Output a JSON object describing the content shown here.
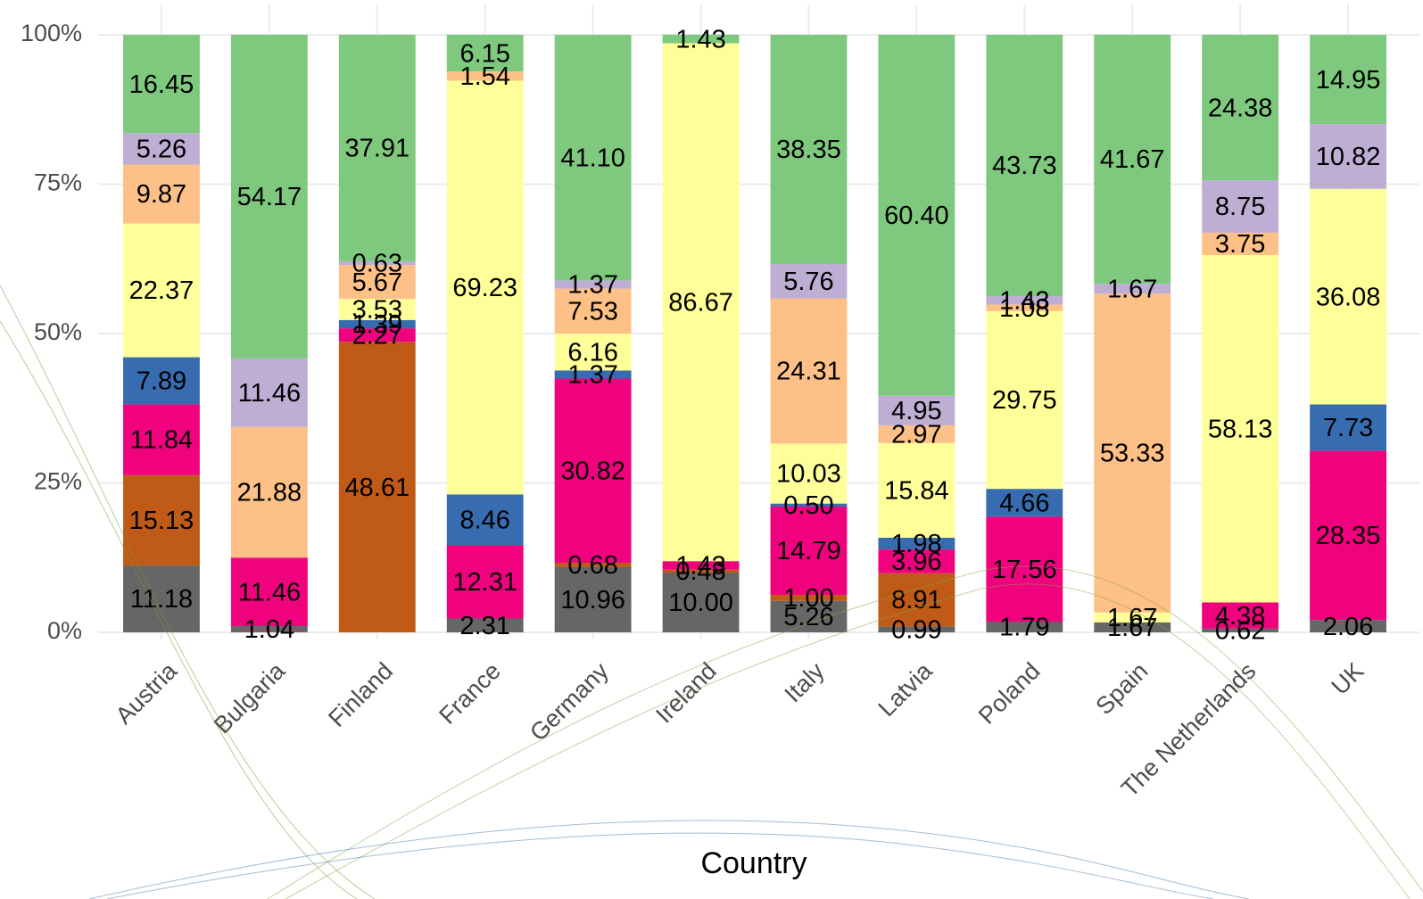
{
  "chart_data": {
    "type": "stacked_bar",
    "x_label": "Country",
    "categories": [
      "Austria",
      "Bulgaria",
      "Finland",
      "France",
      "Germany",
      "Ireland",
      "Italy",
      "Latvia",
      "Poland",
      "Spain",
      "The Netherlands",
      "UK"
    ],
    "ylim": [
      0,
      100
    ],
    "yticks": [
      {
        "value": 0,
        "label": "0%"
      },
      {
        "value": 25,
        "label": "25%"
      },
      {
        "value": 50,
        "label": "50%"
      },
      {
        "value": 75,
        "label": "75%"
      },
      {
        "value": 100,
        "label": "100%"
      }
    ],
    "grid": true,
    "series": [
      {
        "color": "#666666",
        "values": [
          11.18,
          1.04,
          null,
          2.31,
          10.96,
          10.0,
          5.26,
          0.99,
          1.79,
          1.67,
          0.62,
          2.06
        ],
        "value_labels": [
          "11.18",
          "1.04",
          null,
          "2.31",
          "10.96",
          "10.00",
          "5.26",
          "0.99",
          "1.79",
          "1.67",
          "0.62",
          "2.06"
        ]
      },
      {
        "color": "#bf5b17",
        "values": [
          15.13,
          null,
          48.61,
          null,
          0.68,
          0.48,
          1.0,
          8.91,
          null,
          null,
          null,
          null
        ],
        "value_labels": [
          "15.13",
          null,
          "48.61",
          null,
          "0.68",
          "0.48",
          "1.00",
          "8.91",
          null,
          null,
          null,
          null
        ]
      },
      {
        "color": "#f0027f",
        "values": [
          11.84,
          11.46,
          2.27,
          12.31,
          30.82,
          1.43,
          14.79,
          3.96,
          17.56,
          null,
          4.38,
          28.35
        ],
        "value_labels": [
          "11.84",
          "11.46",
          "2.27",
          "12.31",
          "30.82",
          "1.43",
          "14.79",
          "3.96",
          "17.56",
          null,
          "4.38",
          "28.35"
        ]
      },
      {
        "color": "#386cb0",
        "values": [
          7.89,
          null,
          1.39,
          8.46,
          1.37,
          null,
          0.5,
          1.98,
          4.66,
          null,
          null,
          7.73
        ],
        "value_labels": [
          "7.89",
          null,
          "1.39",
          "8.46",
          "1.37",
          null,
          "0.50",
          "1.98",
          "4.66",
          null,
          null,
          "7.73"
        ]
      },
      {
        "color": "#ffff99",
        "values": [
          22.37,
          null,
          3.53,
          69.23,
          6.16,
          86.67,
          10.03,
          15.84,
          29.75,
          1.67,
          58.13,
          36.08
        ],
        "value_labels": [
          "22.37",
          null,
          "3.53",
          "69.23",
          "6.16",
          "86.67",
          "10.03",
          "15.84",
          "29.75",
          "1.67",
          "58.13",
          "36.08"
        ]
      },
      {
        "color": "#fdc086",
        "values": [
          9.87,
          21.88,
          5.67,
          1.54,
          7.53,
          null,
          24.31,
          2.97,
          1.08,
          53.33,
          3.75,
          null
        ],
        "value_labels": [
          "9.87",
          "21.88",
          "5.67",
          "1.54",
          "7.53",
          null,
          "24.31",
          "2.97",
          "1.08",
          "53.33",
          "3.75",
          null
        ]
      },
      {
        "color": "#beaed4",
        "values": [
          5.26,
          11.46,
          0.63,
          null,
          1.37,
          null,
          5.76,
          4.95,
          1.43,
          1.67,
          8.75,
          10.82
        ],
        "value_labels": [
          "5.26",
          "11.46",
          "0.63",
          null,
          "1.37",
          null,
          "5.76",
          "4.95",
          "1.43",
          "1.67",
          "8.75",
          "10.82"
        ]
      },
      {
        "color": "#7fc97f",
        "values": [
          16.45,
          54.17,
          37.91,
          6.15,
          41.1,
          1.43,
          38.35,
          60.4,
          43.73,
          41.67,
          24.38,
          14.95
        ],
        "value_labels": [
          "16.45",
          "54.17",
          "37.91",
          "6.15",
          "41.10",
          "1.43",
          "38.35",
          "60.40",
          "43.73",
          "41.67",
          "24.38",
          "14.95"
        ]
      }
    ]
  }
}
